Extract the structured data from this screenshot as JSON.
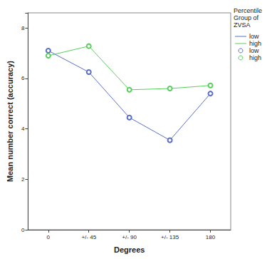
{
  "chart_data": {
    "type": "line",
    "x_label": "Degrees",
    "y_label": "Mean number correct (accuracy)",
    "categories": [
      "0",
      "+/- 45",
      "+/- 90",
      "+/- 135",
      "180"
    ],
    "series": [
      {
        "name": "low",
        "color": "#5a6ec9",
        "values": [
          7.1,
          6.25,
          4.45,
          3.55,
          5.4
        ],
        "marker": "circle",
        "line_style": "solid"
      },
      {
        "name": "high",
        "color": "#58cf5c",
        "values": [
          6.9,
          7.28,
          5.55,
          5.6,
          5.72
        ],
        "marker": "circle",
        "line_style": "solid"
      }
    ],
    "ylim": [
      0,
      8.6
    ],
    "yticks": [
      0,
      2,
      4,
      6,
      8
    ],
    "grid": false,
    "legend": "top-right",
    "legend_title": "Percentile Group of ZVSA"
  }
}
